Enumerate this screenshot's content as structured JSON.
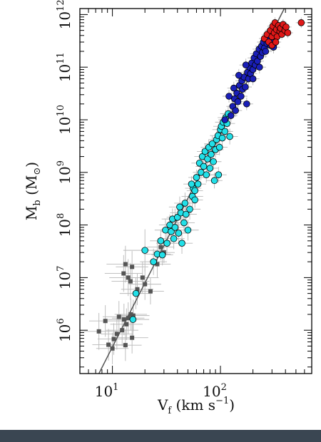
{
  "chart_data": {
    "type": "scatter",
    "title": "",
    "xlabel": "V_f (km s^-1)",
    "ylabel": "M_b (M_⊙)",
    "x_scale": "log",
    "y_scale": "log",
    "xlim": [
      5,
      700
    ],
    "ylim": [
      150000,
      1300000000000
    ],
    "grid": false,
    "legend": "none",
    "x_ticks": [
      {
        "value": 10,
        "base": "10",
        "exp": "1"
      },
      {
        "value": 100,
        "base": "10",
        "exp": "2"
      }
    ],
    "y_ticks": [
      {
        "value": 1000000,
        "base": "10",
        "exp": "6"
      },
      {
        "value": 10000000,
        "base": "10",
        "exp": "7"
      },
      {
        "value": 100000000,
        "base": "10",
        "exp": "8"
      },
      {
        "value": 1000000000,
        "base": "10",
        "exp": "9"
      },
      {
        "value": 10000000000,
        "base": "10",
        "exp": "10"
      },
      {
        "value": 100000000000,
        "base": "10",
        "exp": "11"
      },
      {
        "value": 1000000000000,
        "base": "10",
        "exp": "12"
      }
    ],
    "fit_line": {
      "x": [
        7.5,
        390
      ],
      "y": [
        150000,
        1300000000000
      ],
      "color": "#555555"
    },
    "colors": {
      "gray": "#555555",
      "cyan": "#22e0e8",
      "blue": "#1a1fb8",
      "red": "#e01818",
      "outline": "#000000",
      "errorbar": "#b8b8b8"
    },
    "series": [
      {
        "marker": "square",
        "color": "gray",
        "points": [
          [
            7.5,
            950000,
            0.35
          ],
          [
            8.6,
            1500000,
            0.3
          ],
          [
            9.2,
            530000,
            0.3
          ],
          [
            10.0,
            450000,
            0.3
          ],
          [
            10.3,
            680000,
            0.3
          ],
          [
            11.0,
            850000,
            0.3
          ],
          [
            11.5,
            1800000,
            0.3
          ],
          [
            12.3,
            1000000,
            0.3
          ],
          [
            12.8,
            1600000,
            0.3
          ],
          [
            13.2,
            520000,
            0.3
          ],
          [
            13.5,
            1300000,
            0.3
          ],
          [
            14.0,
            1700000,
            0.3
          ],
          [
            14.8,
            2000000,
            0.3
          ],
          [
            15.2,
            720000,
            0.3
          ],
          [
            15.6,
            1900000,
            0.3
          ],
          [
            12.7,
            12000000,
            0.35
          ],
          [
            13.2,
            18000000,
            0.35
          ],
          [
            14.0,
            10000000,
            0.35
          ],
          [
            14.7,
            8500000,
            0.35
          ],
          [
            15.2,
            16000000,
            0.3
          ],
          [
            17.0,
            6000000,
            0.3
          ],
          [
            19.0,
            10000000,
            0.3
          ],
          [
            20.0,
            7500000,
            0.3
          ],
          [
            22.5,
            5500000,
            0.25
          ],
          [
            26.0,
            18000000,
            0.25
          ],
          [
            28.0,
            38000000,
            0.25
          ],
          [
            30.0,
            30000000,
            0.2
          ],
          [
            38.0,
            130000000,
            0.2
          ]
        ]
      },
      {
        "marker": "circle",
        "color": "cyan",
        "points": [
          [
            15.5,
            1600000,
            0.3
          ],
          [
            16.5,
            5000000,
            0.3
          ],
          [
            20.0,
            33000000,
            0.4
          ],
          [
            24.0,
            20000000,
            0.25
          ],
          [
            26.0,
            28000000,
            0.25
          ],
          [
            28.0,
            50000000,
            0.2
          ],
          [
            29.0,
            27000000,
            0.2
          ],
          [
            31.0,
            80000000,
            0.2
          ],
          [
            32.0,
            45000000,
            0.2
          ],
          [
            34.0,
            100000000,
            0.2
          ],
          [
            35.0,
            75000000,
            0.2
          ],
          [
            36.0,
            130000000,
            0.2
          ],
          [
            37.0,
            55000000,
            0.2
          ],
          [
            38.0,
            90000000,
            0.2
          ],
          [
            40.0,
            140000000,
            0.2
          ],
          [
            41.0,
            70000000,
            0.2
          ],
          [
            43.0,
            170000000,
            0.2
          ],
          [
            44.0,
            45000000,
            0.2
          ],
          [
            46.0,
            110000000,
            0.2
          ],
          [
            48.0,
            160000000,
            0.2
          ],
          [
            50.0,
            80000000,
            0.2
          ],
          [
            42.0,
            220000000,
            0.2
          ],
          [
            47.0,
            260000000,
            0.2
          ],
          [
            52.0,
            200000000,
            0.2
          ],
          [
            55.0,
            350000000,
            0.2
          ],
          [
            56.0,
            500000000,
            0.15
          ],
          [
            58.0,
            450000000,
            0.15
          ],
          [
            60.0,
            800000000,
            0.15
          ],
          [
            62.0,
            600000000,
            0.15
          ],
          [
            64.0,
            1500000000,
            0.15
          ],
          [
            66.0,
            1000000000,
            0.15
          ],
          [
            68.0,
            2000000000,
            0.15
          ],
          [
            70.0,
            1300000000,
            0.15
          ],
          [
            72.0,
            2500000000,
            0.15
          ],
          [
            74.0,
            900000000,
            0.15
          ],
          [
            76.0,
            1800000000,
            0.15
          ],
          [
            78.0,
            3000000000,
            0.15
          ],
          [
            80.0,
            1200000000,
            0.15
          ],
          [
            82.0,
            2200000000,
            0.15
          ],
          [
            84.0,
            3500000000,
            0.15
          ],
          [
            86.0,
            1600000000,
            0.15
          ],
          [
            88.0,
            700000000,
            0.15
          ],
          [
            90.0,
            2700000000,
            0.15
          ],
          [
            92.0,
            4200000000,
            0.15
          ],
          [
            95.0,
            5000000000,
            0.15
          ],
          [
            98.0,
            3000000000,
            0.15
          ],
          [
            100.0,
            6500000000,
            0.15
          ],
          [
            102.0,
            7500000000,
            0.15
          ],
          [
            104.0,
            4500000000,
            0.15
          ],
          [
            106.0,
            9000000000,
            0.15
          ],
          [
            110.0,
            6000000000,
            0.15
          ],
          [
            112.0,
            11000000000,
            0.15
          ],
          [
            115.0,
            8500000000,
            0.15
          ],
          [
            118.0,
            13000000000,
            0.15
          ],
          [
            122.0,
            4800000000,
            0.15
          ],
          [
            96.0,
            900000000,
            0.15
          ],
          [
            58.0,
            300000000,
            0.15
          ],
          [
            54.0,
            600000000,
            0.15
          ]
        ]
      },
      {
        "marker": "circle",
        "color": "blue",
        "points": [
          [
            110.0,
            10000000000,
            0.12
          ],
          [
            125.0,
            12000000000,
            0.12
          ],
          [
            130.0,
            18000000000,
            0.12
          ],
          [
            135.0,
            25000000000,
            0.12
          ],
          [
            138.0,
            15000000000,
            0.12
          ],
          [
            142.0,
            32000000000,
            0.12
          ],
          [
            145.0,
            22000000000,
            0.12
          ],
          [
            150.0,
            45000000000,
            0.12
          ],
          [
            155.0,
            28000000000,
            0.12
          ],
          [
            158.0,
            55000000000,
            0.12
          ],
          [
            160.0,
            38000000000,
            0.12
          ],
          [
            165.0,
            65000000000,
            0.12
          ],
          [
            170.0,
            42000000000,
            0.12
          ],
          [
            175.0,
            20000000000,
            0.12
          ],
          [
            178.0,
            80000000000,
            0.12
          ],
          [
            182.0,
            60000000000,
            0.12
          ],
          [
            186.0,
            100000000000,
            0.12
          ],
          [
            190.0,
            75000000000,
            0.12
          ],
          [
            195.0,
            120000000000,
            0.12
          ],
          [
            200.0,
            90000000000,
            0.12
          ],
          [
            205.0,
            150000000000,
            0.12
          ],
          [
            210.0,
            110000000000,
            0.12
          ],
          [
            215.0,
            180000000000,
            0.12
          ],
          [
            220.0,
            130000000000,
            0.12
          ],
          [
            228.0,
            220000000000,
            0.12
          ],
          [
            235.0,
            160000000000,
            0.12
          ],
          [
            240.0,
            250000000000,
            0.12
          ],
          [
            245.0,
            190000000000,
            0.12
          ],
          [
            250.0,
            300000000000,
            0.12
          ],
          [
            255.0,
            230000000000,
            0.12
          ],
          [
            262.0,
            200000000000,
            0.12
          ],
          [
            270.0,
            280000000000,
            0.12
          ],
          [
            280.0,
            350000000000,
            0.12
          ],
          [
            290.0,
            260000000000,
            0.12
          ],
          [
            300.0,
            320000000000,
            0.12
          ],
          [
            310.0,
            240000000000,
            0.12
          ],
          [
            172.0,
            110000000000,
            0.12
          ],
          [
            148.0,
            70000000000,
            0.12
          ],
          [
            133.0,
            40000000000,
            0.12
          ],
          [
            120.0,
            28000000000,
            0.12
          ],
          [
            200.0,
            60000000000,
            0.12
          ],
          [
            230.0,
            100000000000,
            0.12
          ]
        ]
      },
      {
        "marker": "circle",
        "color": "red",
        "points": [
          [
            255.0,
            350000000000,
            0.1
          ],
          [
            270.0,
            420000000000,
            0.1
          ],
          [
            280.0,
            300000000000,
            0.1
          ],
          [
            290.0,
            500000000000,
            0.1
          ],
          [
            300.0,
            380000000000,
            0.1
          ],
          [
            305.0,
            600000000000,
            0.1
          ],
          [
            315.0,
            450000000000,
            0.1
          ],
          [
            320.0,
            700000000000,
            0.1
          ],
          [
            330.0,
            520000000000,
            0.1
          ],
          [
            335.0,
            380000000000,
            0.1
          ],
          [
            345.0,
            620000000000,
            0.1
          ],
          [
            355.0,
            480000000000,
            0.1
          ],
          [
            360.0,
            550000000000,
            0.1
          ],
          [
            370.0,
            420000000000,
            0.1
          ],
          [
            380.0,
            650000000000,
            0.1
          ],
          [
            395.0,
            500000000000,
            0.1
          ],
          [
            405.0,
            580000000000,
            0.1
          ],
          [
            420.0,
            450000000000,
            0.1
          ],
          [
            560.0,
            700000000000,
            0.1
          ],
          [
            300.0,
            260000000000,
            0.1
          ],
          [
            325.0,
            300000000000,
            0.1
          ]
        ]
      }
    ]
  }
}
